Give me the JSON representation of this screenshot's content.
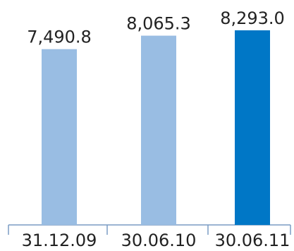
{
  "chart_data": {
    "type": "bar",
    "categories": [
      "31.12.09",
      "30.06.10",
      "30.06.11"
    ],
    "values": [
      7490.8,
      8065.3,
      8293.0
    ],
    "value_labels": [
      "7,490.8",
      "8,065.3",
      "8,293.0"
    ],
    "colors": [
      "#99bde3",
      "#99bde3",
      "#0077c6"
    ],
    "axis_color": "#7a9cc4",
    "title": "",
    "xlabel": "",
    "ylabel": "",
    "ylim": [
      0,
      8293.0
    ],
    "grid": false,
    "legend": "none"
  }
}
